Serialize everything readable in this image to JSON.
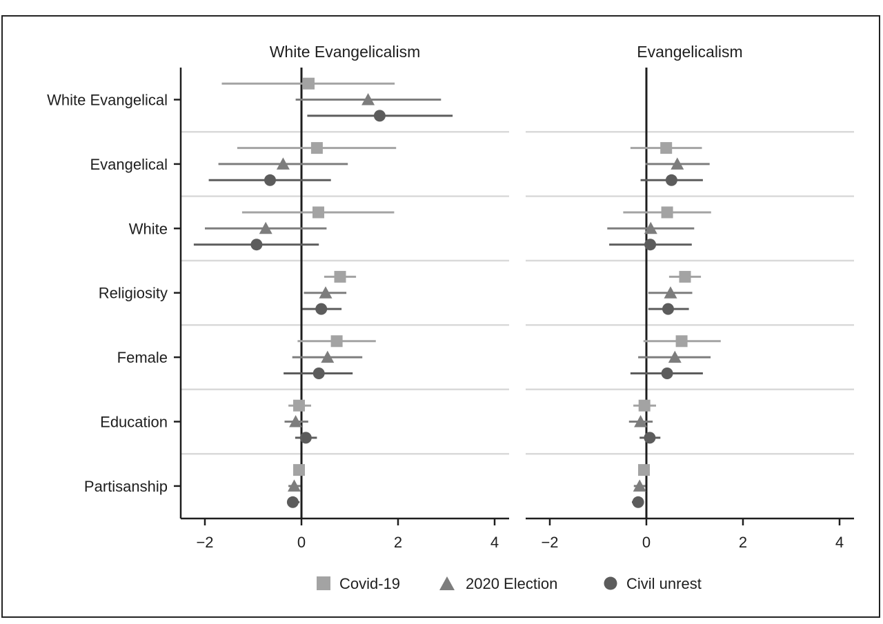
{
  "chart_data": {
    "type": "scatter",
    "subtype": "coefficient-plot-with-intervals",
    "panels": [
      {
        "title": "White Evangelicalism",
        "categories": [
          "White Evangelical",
          "Evangelical",
          "White",
          "Religiosity",
          "Female",
          "Education",
          "Partisanship"
        ],
        "series": [
          {
            "name": "Covid-19",
            "estimates": [
              0.15,
              0.32,
              0.35,
              0.8,
              0.73,
              -0.05,
              -0.05
            ],
            "lower": [
              -1.65,
              -1.33,
              -1.23,
              0.47,
              -0.08,
              -0.27,
              -0.14
            ],
            "upper": [
              1.93,
              1.96,
              1.92,
              1.13,
              1.54,
              0.2,
              0.06
            ]
          },
          {
            "name": "2020 Election",
            "estimates": [
              1.38,
              -0.38,
              -0.74,
              0.5,
              0.54,
              -0.12,
              -0.15
            ],
            "lower": [
              -0.12,
              -1.72,
              -2.0,
              0.05,
              -0.19,
              -0.35,
              -0.27
            ],
            "upper": [
              2.89,
              0.96,
              0.52,
              0.93,
              1.26,
              0.14,
              -0.02
            ]
          },
          {
            "name": "Civil unrest",
            "estimates": [
              1.62,
              -0.65,
              -0.93,
              0.41,
              0.36,
              0.09,
              -0.18
            ],
            "lower": [
              0.12,
              -1.92,
              -2.23,
              0.02,
              -0.37,
              -0.13,
              -0.3
            ],
            "upper": [
              3.13,
              0.61,
              0.36,
              0.83,
              1.06,
              0.32,
              -0.04
            ]
          }
        ]
      },
      {
        "title": "Evangelicalism",
        "categories": [
          "Evangelical",
          "White",
          "Religiosity",
          "Female",
          "Education",
          "Partisanship"
        ],
        "series": [
          {
            "name": "Covid-19",
            "estimates": [
              0.41,
              0.43,
              0.8,
              0.73,
              -0.04,
              -0.05
            ],
            "lower": [
              -0.33,
              -0.48,
              0.47,
              -0.06,
              -0.27,
              -0.14
            ],
            "upper": [
              1.15,
              1.34,
              1.13,
              1.54,
              0.2,
              0.06
            ]
          },
          {
            "name": "2020 Election",
            "estimates": [
              0.64,
              0.09,
              0.5,
              0.59,
              -0.12,
              -0.14
            ],
            "lower": [
              -0.02,
              -0.81,
              0.04,
              -0.17,
              -0.36,
              -0.26
            ],
            "upper": [
              1.31,
              0.99,
              0.95,
              1.33,
              0.13,
              -0.02
            ]
          },
          {
            "name": "Civil unrest",
            "estimates": [
              0.52,
              0.08,
              0.45,
              0.43,
              0.07,
              -0.17
            ],
            "lower": [
              -0.12,
              -0.77,
              0.04,
              -0.33,
              -0.14,
              -0.3
            ],
            "upper": [
              1.17,
              0.94,
              0.88,
              1.17,
              0.29,
              -0.05
            ]
          }
        ]
      }
    ],
    "all_categories": [
      "White Evangelical",
      "Evangelical",
      "White",
      "Religiosity",
      "Female",
      "Education",
      "Partisanship"
    ],
    "xlim": [
      -2.5,
      4.3
    ],
    "xticks": [
      -2,
      0,
      2,
      4
    ],
    "xtick_labels": [
      "−2",
      "0",
      "2",
      "4"
    ],
    "reference_line": 0,
    "xlabel": "",
    "ylabel": "",
    "grid": "horizontal separators between categories",
    "legend": {
      "position": "bottom-center",
      "items": [
        {
          "name": "Covid-19",
          "marker": "square",
          "color": "#a3a3a3"
        },
        {
          "name": "2020 Election",
          "marker": "triangle",
          "color": "#7d7d7d"
        },
        {
          "name": "Civil unrest",
          "marker": "circle",
          "color": "#5c5c5c"
        }
      ]
    },
    "colors": {
      "covid": "#a3a3a3",
      "election": "#7d7d7d",
      "unrest": "#5c5c5c",
      "axis": "#1e1e1e",
      "separator": "#d9d9d9"
    }
  }
}
